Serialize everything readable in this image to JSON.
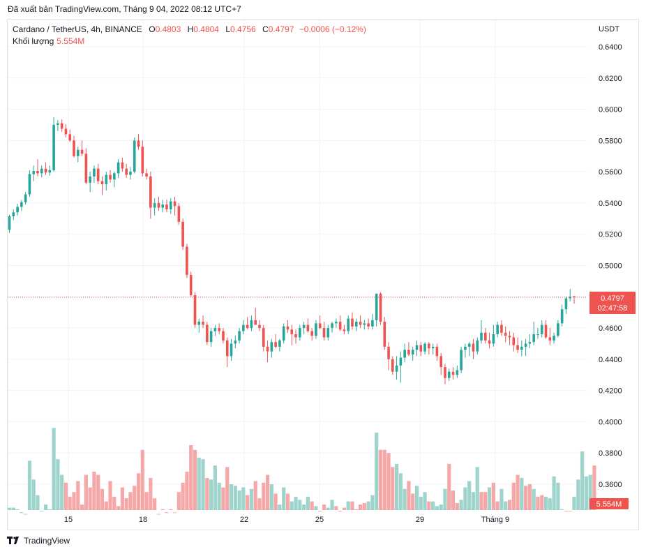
{
  "header": {
    "published": "Đã xuất bản TradingView.com, Tháng 9 04, 2022 08:12 UTC+7"
  },
  "legend": {
    "symbol": "Cardano / TetherUS, 4h, BINANCE",
    "o_label": "O",
    "o_value": "0.4803",
    "h_label": "H",
    "h_value": "0.4804",
    "l_label": "L",
    "l_value": "0.4756",
    "c_label": "C",
    "c_value": "0.4797",
    "change": "−0.0006 (−0.12%)",
    "volume_label": "Khối lượng",
    "volume_value": "5.554M"
  },
  "price_axis": {
    "currency": "USDT",
    "ticks": [
      "0.6400",
      "0.6200",
      "0.6000",
      "0.5800",
      "0.5600",
      "0.5400",
      "0.5200",
      "0.5000",
      "0.4800",
      "0.4600",
      "0.4400",
      "0.4200",
      "0.4000",
      "0.3800",
      "0.3600"
    ]
  },
  "time_axis": {
    "ticks": [
      "15",
      "18",
      "22",
      "25",
      "29",
      "Tháng 9"
    ]
  },
  "current_price": {
    "price": "0.4797",
    "countdown": "02:47:58"
  },
  "volume_badge": "5.554M",
  "footer": {
    "brand": "TradingView"
  },
  "colors": {
    "up": "#26a69a",
    "down": "#ef5350",
    "up_volume": "#9fd4cd",
    "down_volume": "#f5a8a7",
    "grid": "#f0f3fa"
  },
  "chart_data": {
    "type": "candlestick",
    "timeframe": "4h",
    "currency": "USDT",
    "x_ticks": [
      "15",
      "18",
      "22",
      "25",
      "29",
      "Tháng 9"
    ],
    "ylim": [
      0.41,
      0.645
    ],
    "last_close": 0.4797,
    "last_volume": "5.554M",
    "candles": [
      [
        0.5228,
        0.5325,
        0.521,
        0.5315
      ],
      [
        0.5315,
        0.536,
        0.529,
        0.534
      ],
      [
        0.534,
        0.5395,
        0.532,
        0.5375
      ],
      [
        0.5375,
        0.542,
        0.535,
        0.5405
      ],
      [
        0.5405,
        0.547,
        0.539,
        0.5455
      ],
      [
        0.5455,
        0.561,
        0.544,
        0.5585
      ],
      [
        0.5585,
        0.564,
        0.554,
        0.5605
      ],
      [
        0.5605,
        0.568,
        0.557,
        0.559
      ],
      [
        0.559,
        0.564,
        0.5565,
        0.562
      ],
      [
        0.562,
        0.566,
        0.558,
        0.5595
      ],
      [
        0.5595,
        0.564,
        0.5575,
        0.561
      ],
      [
        0.561,
        0.595,
        0.56,
        0.59
      ],
      [
        0.59,
        0.593,
        0.586,
        0.591
      ],
      [
        0.591,
        0.5935,
        0.5855,
        0.5875
      ],
      [
        0.5875,
        0.5905,
        0.582,
        0.584
      ],
      [
        0.584,
        0.587,
        0.579,
        0.58
      ],
      [
        0.58,
        0.583,
        0.569,
        0.57
      ],
      [
        0.57,
        0.576,
        0.566,
        0.574
      ],
      [
        0.574,
        0.58,
        0.57,
        0.5715
      ],
      [
        0.5715,
        0.575,
        0.552,
        0.553
      ],
      [
        0.553,
        0.56,
        0.547,
        0.557
      ],
      [
        0.557,
        0.564,
        0.553,
        0.562
      ],
      [
        0.562,
        0.565,
        0.552,
        0.554
      ],
      [
        0.554,
        0.557,
        0.545,
        0.552
      ],
      [
        0.552,
        0.56,
        0.548,
        0.558
      ],
      [
        0.558,
        0.561,
        0.553,
        0.555
      ],
      [
        0.555,
        0.56,
        0.55,
        0.559
      ],
      [
        0.559,
        0.568,
        0.556,
        0.566
      ],
      [
        0.566,
        0.569,
        0.56,
        0.562
      ],
      [
        0.562,
        0.565,
        0.556,
        0.558
      ],
      [
        0.558,
        0.563,
        0.555,
        0.56
      ],
      [
        0.56,
        0.582,
        0.559,
        0.58
      ],
      [
        0.58,
        0.584,
        0.574,
        0.576
      ],
      [
        0.576,
        0.58,
        0.557,
        0.559
      ],
      [
        0.559,
        0.562,
        0.555,
        0.557
      ],
      [
        0.557,
        0.56,
        0.53,
        0.537
      ],
      [
        0.537,
        0.543,
        0.532,
        0.54
      ],
      [
        0.54,
        0.544,
        0.535,
        0.537
      ],
      [
        0.537,
        0.542,
        0.534,
        0.539
      ],
      [
        0.539,
        0.542,
        0.534,
        0.536
      ],
      [
        0.536,
        0.543,
        0.533,
        0.541
      ],
      [
        0.541,
        0.544,
        0.532,
        0.538
      ],
      [
        0.538,
        0.54,
        0.526,
        0.528
      ],
      [
        0.528,
        0.53,
        0.51,
        0.512
      ],
      [
        0.512,
        0.514,
        0.492,
        0.494
      ],
      [
        0.494,
        0.496,
        0.48,
        0.481
      ],
      [
        0.481,
        0.483,
        0.46,
        0.462
      ],
      [
        0.462,
        0.466,
        0.457,
        0.464
      ],
      [
        0.464,
        0.468,
        0.46,
        0.462
      ],
      [
        0.462,
        0.464,
        0.449,
        0.451
      ],
      [
        0.451,
        0.46,
        0.448,
        0.458
      ],
      [
        0.458,
        0.462,
        0.455,
        0.46
      ],
      [
        0.46,
        0.463,
        0.456,
        0.458
      ],
      [
        0.458,
        0.46,
        0.45,
        0.452
      ],
      [
        0.452,
        0.454,
        0.435,
        0.442
      ],
      [
        0.442,
        0.453,
        0.439,
        0.45
      ],
      [
        0.45,
        0.455,
        0.447,
        0.452
      ],
      [
        0.452,
        0.46,
        0.45,
        0.458
      ],
      [
        0.458,
        0.465,
        0.456,
        0.462
      ],
      [
        0.462,
        0.467,
        0.459,
        0.46
      ],
      [
        0.46,
        0.468,
        0.458,
        0.465
      ],
      [
        0.465,
        0.473,
        0.462,
        0.462
      ],
      [
        0.462,
        0.465,
        0.458,
        0.46
      ],
      [
        0.46,
        0.462,
        0.445,
        0.448
      ],
      [
        0.448,
        0.452,
        0.438,
        0.445
      ],
      [
        0.445,
        0.453,
        0.441,
        0.451
      ],
      [
        0.451,
        0.456,
        0.447,
        0.448
      ],
      [
        0.448,
        0.453,
        0.445,
        0.452
      ],
      [
        0.452,
        0.463,
        0.45,
        0.461
      ],
      [
        0.461,
        0.465,
        0.457,
        0.459
      ],
      [
        0.459,
        0.462,
        0.449,
        0.456
      ],
      [
        0.456,
        0.459,
        0.45,
        0.454
      ],
      [
        0.454,
        0.462,
        0.452,
        0.46
      ],
      [
        0.46,
        0.464,
        0.456,
        0.462
      ],
      [
        0.462,
        0.466,
        0.457,
        0.458
      ],
      [
        0.458,
        0.46,
        0.452,
        0.455
      ],
      [
        0.455,
        0.465,
        0.453,
        0.463
      ],
      [
        0.463,
        0.468,
        0.459,
        0.46
      ],
      [
        0.46,
        0.464,
        0.452,
        0.454
      ],
      [
        0.454,
        0.462,
        0.452,
        0.46
      ],
      [
        0.46,
        0.464,
        0.457,
        0.463
      ],
      [
        0.463,
        0.466,
        0.46,
        0.464
      ],
      [
        0.464,
        0.468,
        0.458,
        0.459
      ],
      [
        0.459,
        0.462,
        0.456,
        0.458
      ],
      [
        0.458,
        0.468,
        0.456,
        0.466
      ],
      [
        0.466,
        0.47,
        0.459,
        0.461
      ],
      [
        0.461,
        0.466,
        0.458,
        0.464
      ],
      [
        0.464,
        0.468,
        0.46,
        0.462
      ],
      [
        0.462,
        0.465,
        0.459,
        0.463
      ],
      [
        0.463,
        0.466,
        0.459,
        0.461
      ],
      [
        0.461,
        0.469,
        0.459,
        0.465
      ],
      [
        0.465,
        0.482,
        0.461,
        0.482
      ],
      [
        0.482,
        0.483,
        0.462,
        0.464
      ],
      [
        0.464,
        0.467,
        0.446,
        0.448
      ],
      [
        0.448,
        0.451,
        0.433,
        0.44
      ],
      [
        0.44,
        0.442,
        0.43,
        0.432
      ],
      [
        0.432,
        0.442,
        0.427,
        0.436
      ],
      [
        0.436,
        0.445,
        0.425,
        0.441
      ],
      [
        0.441,
        0.45,
        0.438,
        0.446
      ],
      [
        0.446,
        0.451,
        0.442,
        0.443
      ],
      [
        0.443,
        0.448,
        0.439,
        0.446
      ],
      [
        0.446,
        0.452,
        0.442,
        0.449
      ],
      [
        0.449,
        0.451,
        0.442,
        0.445
      ],
      [
        0.445,
        0.451,
        0.443,
        0.45
      ],
      [
        0.45,
        0.451,
        0.443,
        0.447
      ],
      [
        0.447,
        0.45,
        0.443,
        0.448
      ],
      [
        0.448,
        0.45,
        0.439,
        0.442
      ],
      [
        0.442,
        0.444,
        0.43,
        0.435
      ],
      [
        0.435,
        0.437,
        0.424,
        0.428
      ],
      [
        0.428,
        0.434,
        0.426,
        0.432
      ],
      [
        0.432,
        0.435,
        0.427,
        0.43
      ],
      [
        0.43,
        0.436,
        0.428,
        0.433
      ],
      [
        0.433,
        0.448,
        0.431,
        0.446
      ],
      [
        0.446,
        0.45,
        0.441,
        0.448
      ],
      [
        0.448,
        0.451,
        0.442,
        0.45
      ],
      [
        0.45,
        0.453,
        0.44,
        0.445
      ],
      [
        0.445,
        0.454,
        0.443,
        0.452
      ],
      [
        0.452,
        0.465,
        0.45,
        0.457
      ],
      [
        0.457,
        0.46,
        0.45,
        0.452
      ],
      [
        0.452,
        0.457,
        0.447,
        0.45
      ],
      [
        0.45,
        0.462,
        0.448,
        0.456
      ],
      [
        0.456,
        0.464,
        0.454,
        0.462
      ],
      [
        0.462,
        0.465,
        0.455,
        0.457
      ],
      [
        0.457,
        0.461,
        0.451,
        0.455
      ],
      [
        0.455,
        0.458,
        0.449,
        0.454
      ],
      [
        0.454,
        0.457,
        0.445,
        0.449
      ],
      [
        0.449,
        0.454,
        0.444,
        0.446
      ],
      [
        0.446,
        0.452,
        0.442,
        0.448
      ],
      [
        0.448,
        0.453,
        0.442,
        0.45
      ],
      [
        0.45,
        0.456,
        0.447,
        0.451
      ],
      [
        0.451,
        0.464,
        0.449,
        0.456
      ],
      [
        0.456,
        0.46,
        0.453,
        0.456
      ],
      [
        0.456,
        0.465,
        0.454,
        0.462
      ],
      [
        0.462,
        0.465,
        0.453,
        0.454
      ],
      [
        0.454,
        0.46,
        0.449,
        0.452
      ],
      [
        0.452,
        0.457,
        0.45,
        0.455
      ],
      [
        0.455,
        0.465,
        0.454,
        0.463
      ],
      [
        0.463,
        0.475,
        0.461,
        0.472
      ],
      [
        0.472,
        0.48,
        0.469,
        0.479
      ],
      [
        0.479,
        0.485,
        0.477,
        0.48
      ],
      [
        0.4803,
        0.4804,
        0.4756,
        0.4797
      ]
    ],
    "volumes": [
      [
        0.345,
        0
      ],
      [
        0.345,
        0
      ],
      [
        0.344,
        0
      ],
      [
        0.342,
        0
      ],
      [
        0.341,
        0
      ],
      [
        0.375,
        0
      ],
      [
        0.363,
        0
      ],
      [
        0.353,
        0
      ],
      [
        0.343,
        0
      ],
      [
        0.347,
        0
      ],
      [
        0.344,
        0
      ],
      [
        0.396,
        0
      ],
      [
        0.376,
        0
      ],
      [
        0.366,
        0
      ],
      [
        0.361,
        1
      ],
      [
        0.352,
        1
      ],
      [
        0.355,
        1
      ],
      [
        0.362,
        1
      ],
      [
        0.347,
        1
      ],
      [
        0.366,
        1
      ],
      [
        0.358,
        1
      ],
      [
        0.368,
        1
      ],
      [
        0.366,
        1
      ],
      [
        0.357,
        1
      ],
      [
        0.349,
        1
      ],
      [
        0.362,
        1
      ],
      [
        0.352,
        1
      ],
      [
        0.346,
        1
      ],
      [
        0.358,
        1
      ],
      [
        0.351,
        1
      ],
      [
        0.355,
        1
      ],
      [
        0.359,
        1
      ],
      [
        0.367,
        1
      ],
      [
        0.382,
        1
      ],
      [
        0.355,
        1
      ],
      [
        0.364,
        1
      ],
      [
        0.351,
        1
      ],
      [
        0.341,
        1
      ],
      [
        0.344,
        1
      ],
      [
        0.342,
        1
      ],
      [
        0.344,
        1
      ],
      [
        0.342,
        1
      ],
      [
        0.355,
        1
      ],
      [
        0.361,
        1
      ],
      [
        0.368,
        1
      ],
      [
        0.385,
        1
      ],
      [
        0.382,
        1
      ],
      [
        0.377,
        0
      ],
      [
        0.376,
        0
      ],
      [
        0.364,
        1
      ],
      [
        0.363,
        0
      ],
      [
        0.372,
        0
      ],
      [
        0.361,
        0
      ],
      [
        0.358,
        1
      ],
      [
        0.371,
        1
      ],
      [
        0.36,
        0
      ],
      [
        0.359,
        0
      ],
      [
        0.356,
        0
      ],
      [
        0.358,
        0
      ],
      [
        0.353,
        1
      ],
      [
        0.357,
        0
      ],
      [
        0.362,
        1
      ],
      [
        0.351,
        1
      ],
      [
        0.361,
        1
      ],
      [
        0.366,
        1
      ],
      [
        0.36,
        0
      ],
      [
        0.354,
        1
      ],
      [
        0.347,
        0
      ],
      [
        0.358,
        0
      ],
      [
        0.354,
        1
      ],
      [
        0.349,
        0
      ],
      [
        0.352,
        0
      ],
      [
        0.35,
        0
      ],
      [
        0.347,
        0
      ],
      [
        0.352,
        0
      ],
      [
        0.349,
        1
      ],
      [
        0.346,
        0
      ],
      [
        0.343,
        1
      ],
      [
        0.347,
        1
      ],
      [
        0.345,
        0
      ],
      [
        0.35,
        0
      ],
      [
        0.346,
        1
      ],
      [
        0.343,
        1
      ],
      [
        0.345,
        1
      ],
      [
        0.349,
        0
      ],
      [
        0.349,
        1
      ],
      [
        0.344,
        1
      ],
      [
        0.347,
        1
      ],
      [
        0.348,
        1
      ],
      [
        0.349,
        0
      ],
      [
        0.353,
        0
      ],
      [
        0.393,
        0
      ],
      [
        0.382,
        1
      ],
      [
        0.382,
        1
      ],
      [
        0.38,
        1
      ],
      [
        0.371,
        1
      ],
      [
        0.373,
        0
      ],
      [
        0.367,
        0
      ],
      [
        0.357,
        0
      ],
      [
        0.362,
        1
      ],
      [
        0.354,
        1
      ],
      [
        0.359,
        0
      ],
      [
        0.352,
        0
      ],
      [
        0.355,
        0
      ],
      [
        0.349,
        1
      ],
      [
        0.349,
        0
      ],
      [
        0.346,
        0
      ],
      [
        0.347,
        0
      ],
      [
        0.357,
        0
      ],
      [
        0.373,
        1
      ],
      [
        0.356,
        1
      ],
      [
        0.348,
        1
      ],
      [
        0.35,
        0
      ],
      [
        0.358,
        0
      ],
      [
        0.362,
        0
      ],
      [
        0.355,
        0
      ],
      [
        0.371,
        0
      ],
      [
        0.355,
        1
      ],
      [
        0.355,
        1
      ],
      [
        0.358,
        0
      ],
      [
        0.361,
        1
      ],
      [
        0.349,
        1
      ],
      [
        0.357,
        0
      ],
      [
        0.349,
        0
      ],
      [
        0.35,
        1
      ],
      [
        0.361,
        1
      ],
      [
        0.366,
        1
      ],
      [
        0.364,
        0
      ],
      [
        0.359,
        1
      ],
      [
        0.36,
        1
      ],
      [
        0.357,
        0
      ],
      [
        0.352,
        1
      ],
      [
        0.353,
        1
      ],
      [
        0.352,
        0
      ],
      [
        0.351,
        0
      ],
      [
        0.365,
        0
      ],
      [
        0.361,
        0
      ],
      [
        0.344,
        0
      ],
      [
        0.343,
        1
      ],
      [
        0.343,
        1
      ],
      [
        0.352,
        0
      ],
      [
        0.363,
        0
      ],
      [
        0.381,
        0
      ],
      [
        0.365,
        0
      ],
      [
        0.366,
        0
      ],
      [
        0.372,
        1
      ]
    ]
  }
}
